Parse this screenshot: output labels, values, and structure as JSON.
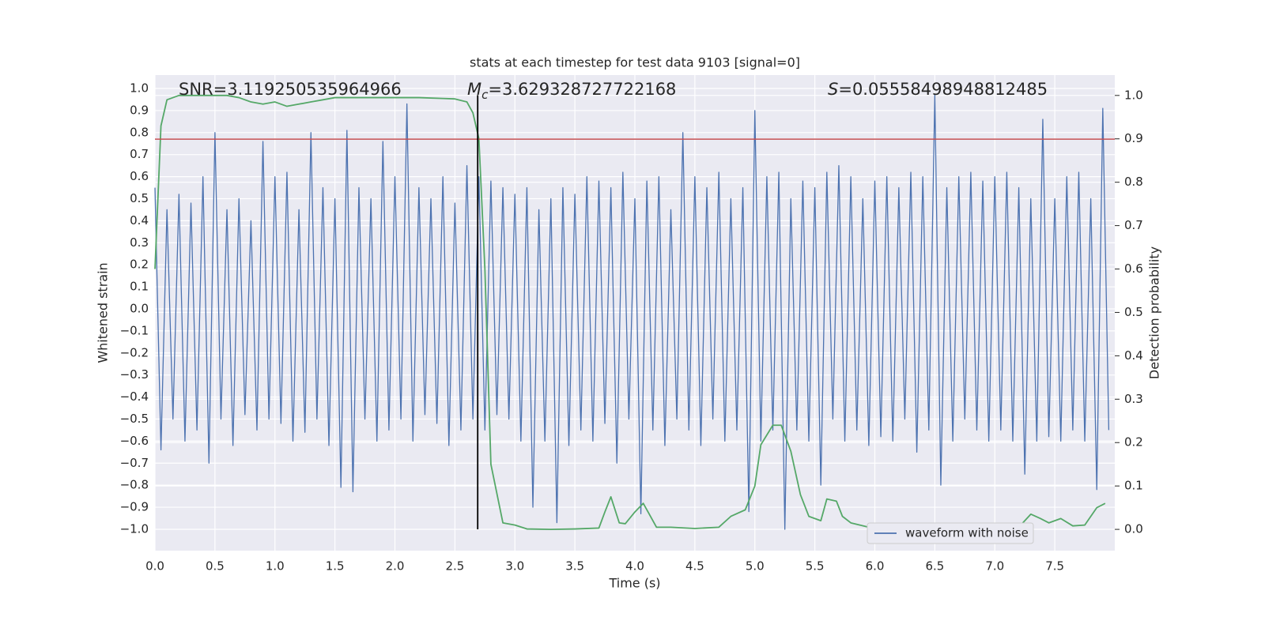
{
  "chart_data": {
    "type": "line",
    "title": "stats at each timestep for test data 9103 [signal=0]",
    "xlabel": "Time (s)",
    "ylabel": "Whitened strain",
    "y2label": "Detection probability",
    "annotations": [
      {
        "text": "SNR=3.119250535964966"
      },
      {
        "symbol": "M",
        "subscript": "c",
        "text": "=3.629328727722168"
      },
      {
        "symbol": "S",
        "text": "=0.05558498948812485"
      }
    ],
    "xlim": [
      0,
      8
    ],
    "ylim": [
      -1.097,
      1.061
    ],
    "y2lim": [
      -0.049,
      1.047
    ],
    "xticks": [
      {
        "value": 0,
        "label": "0.0"
      },
      0.5,
      {
        "value": 1,
        "label": "1.0"
      },
      1.5,
      {
        "value": 2,
        "label": "2.0"
      },
      2.5,
      {
        "value": 3,
        "label": "3.0"
      },
      3.5,
      {
        "value": 4,
        "label": "4.0"
      },
      4.5,
      {
        "value": 5,
        "label": "5.0"
      },
      5.5,
      {
        "value": 6,
        "label": "6.0"
      },
      6.5,
      {
        "value": 7,
        "label": "7.0"
      },
      7.5
    ],
    "yticks": [
      {
        "value": 1,
        "label": "1.0"
      },
      0.9,
      0.8,
      0.7,
      0.6,
      0.5,
      0.4,
      0.3,
      0.2,
      0.1,
      {
        "value": 0,
        "label": "0.0"
      },
      {
        "value": -0.1,
        "label": "−0.1"
      },
      {
        "value": -0.2,
        "label": "−0.2"
      },
      {
        "value": -0.3,
        "label": "−0.3"
      },
      {
        "value": -0.4,
        "label": "−0.4"
      },
      {
        "value": -0.5,
        "label": "−0.5"
      },
      {
        "value": -0.6,
        "label": "−0.6"
      },
      {
        "value": -0.7,
        "label": "−0.7"
      },
      {
        "value": -0.8,
        "label": "−0.8"
      },
      {
        "value": -0.9,
        "label": "−0.9"
      },
      {
        "value": -1,
        "label": "−1.0"
      }
    ],
    "y2ticks": [
      {
        "value": 0,
        "label": "0.0"
      },
      0.1,
      0.2,
      0.3,
      0.4,
      0.5,
      0.6,
      0.7,
      0.8,
      0.9,
      {
        "value": 1,
        "label": "1.0"
      }
    ],
    "grid": true,
    "legend_loc": "lower right",
    "hlines": [
      {
        "y": 0.77,
        "color": "#c44e52"
      }
    ],
    "vlines": [
      {
        "x": 2.69,
        "ymin": -1.0,
        "ymax": 0.97,
        "color": "#000000"
      }
    ],
    "series": [
      {
        "name": "waveform with noise",
        "color": "#4c72b0",
        "x": [
          0,
          0.05,
          0.1,
          0.15,
          0.2,
          0.25,
          0.3,
          0.35,
          0.4,
          0.45,
          0.5,
          0.55,
          0.6,
          0.65,
          0.7,
          0.75,
          0.8,
          0.85,
          0.9,
          0.95,
          1,
          1.05,
          1.1,
          1.15,
          1.2,
          1.25,
          1.3,
          1.35,
          1.4,
          1.45,
          1.5,
          1.55,
          1.6,
          1.65,
          1.7,
          1.75,
          1.8,
          1.85,
          1.9,
          1.95,
          2,
          2.05,
          2.1,
          2.15,
          2.2,
          2.25,
          2.3,
          2.35,
          2.4,
          2.45,
          2.5,
          2.55,
          2.6,
          2.65,
          2.7,
          2.75,
          2.8,
          2.85,
          2.9,
          2.95,
          3,
          3.05,
          3.1,
          3.15,
          3.2,
          3.25,
          3.3,
          3.35,
          3.4,
          3.45,
          3.5,
          3.55,
          3.6,
          3.65,
          3.7,
          3.75,
          3.8,
          3.85,
          3.9,
          3.95,
          4,
          4.05,
          4.1,
          4.15,
          4.2,
          4.25,
          4.3,
          4.35,
          4.4,
          4.45,
          4.5,
          4.55,
          4.6,
          4.65,
          4.7,
          4.75,
          4.8,
          4.85,
          4.9,
          4.95,
          5,
          5.05,
          5.1,
          5.15,
          5.2,
          5.25,
          5.3,
          5.35,
          5.4,
          5.45,
          5.5,
          5.55,
          5.6,
          5.65,
          5.7,
          5.75,
          5.8,
          5.85,
          5.9,
          5.95,
          6,
          6.05,
          6.1,
          6.15,
          6.2,
          6.25,
          6.3,
          6.35,
          6.4,
          6.45,
          6.5,
          6.55,
          6.6,
          6.65,
          6.7,
          6.75,
          6.8,
          6.85,
          6.9,
          6.95,
          7,
          7.05,
          7.1,
          7.15,
          7.2,
          7.25,
          7.3,
          7.35,
          7.4,
          7.45,
          7.5,
          7.55,
          7.6,
          7.65,
          7.7,
          7.75,
          7.8,
          7.85,
          7.9,
          7.95
        ],
        "values": [
          0.55,
          -0.64,
          0.45,
          -0.5,
          0.52,
          -0.6,
          0.48,
          -0.55,
          0.6,
          -0.7,
          0.8,
          -0.5,
          0.45,
          -0.62,
          0.5,
          -0.48,
          0.4,
          -0.55,
          0.76,
          -0.5,
          0.6,
          -0.52,
          0.62,
          -0.6,
          0.45,
          -0.56,
          0.8,
          -0.5,
          0.55,
          -0.62,
          0.5,
          -0.81,
          0.81,
          -0.83,
          0.55,
          -0.5,
          0.5,
          -0.6,
          0.76,
          -0.55,
          0.6,
          -0.5,
          0.93,
          -0.6,
          0.55,
          -0.48,
          0.5,
          -0.52,
          0.6,
          -0.62,
          0.48,
          -0.55,
          0.65,
          -0.5,
          0.6,
          -0.55,
          0.58,
          -0.48,
          0.55,
          -0.5,
          0.52,
          -0.6,
          0.55,
          -0.9,
          0.45,
          -0.6,
          0.5,
          -0.97,
          0.55,
          -0.62,
          0.52,
          -0.55,
          0.6,
          -0.6,
          0.58,
          -0.52,
          0.55,
          -0.7,
          0.62,
          -0.5,
          0.5,
          -0.93,
          0.58,
          -0.55,
          0.6,
          -0.62,
          0.45,
          -0.5,
          0.8,
          -0.55,
          0.6,
          -0.62,
          0.55,
          -0.5,
          0.62,
          -0.6,
          0.5,
          -0.55,
          0.55,
          -0.92,
          0.9,
          -0.6,
          0.6,
          -0.55,
          0.62,
          -1.0,
          0.5,
          -0.55,
          0.58,
          -0.6,
          0.55,
          -0.8,
          0.62,
          -0.5,
          0.65,
          -0.6,
          0.6,
          -0.55,
          0.5,
          -0.62,
          0.58,
          -0.58,
          0.6,
          -0.6,
          0.55,
          -0.5,
          0.62,
          -0.65,
          0.6,
          -0.55,
          0.97,
          -0.8,
          0.55,
          -0.6,
          0.6,
          -0.5,
          0.62,
          -0.55,
          0.58,
          -0.6,
          0.6,
          -0.55,
          0.62,
          -0.6,
          0.55,
          -0.75,
          0.5,
          -0.6,
          0.86,
          -0.58,
          0.5,
          -0.6,
          0.6,
          -0.55,
          0.62,
          -0.6,
          0.5,
          -0.82,
          0.91,
          -0.55
        ]
      },
      {
        "color": "#55a868",
        "axis": "y2",
        "x": [
          0,
          0.05,
          0.1,
          0.2,
          0.3,
          0.4,
          0.5,
          0.6,
          0.7,
          0.8,
          0.9,
          1.0,
          1.1,
          1.2,
          1.3,
          1.4,
          1.5,
          1.6,
          1.8,
          2.0,
          2.2,
          2.4,
          2.5,
          2.6,
          2.65,
          2.7,
          2.75,
          2.8,
          2.9,
          3.0,
          3.1,
          3.3,
          3.5,
          3.7,
          3.75,
          3.8,
          3.87,
          3.92,
          4.0,
          4.07,
          4.12,
          4.18,
          4.3,
          4.5,
          4.7,
          4.8,
          4.92,
          5.0,
          5.05,
          5.15,
          5.22,
          5.3,
          5.38,
          5.45,
          5.55,
          5.6,
          5.68,
          5.73,
          5.8,
          5.95,
          6.1,
          6.3,
          6.5,
          6.7,
          7.0,
          7.2,
          7.3,
          7.38,
          7.45,
          7.55,
          7.65,
          7.75,
          7.85,
          7.92
        ],
        "values": [
          0.6,
          0.93,
          0.99,
          1,
          1,
          1,
          1,
          1,
          0.995,
          0.985,
          0.98,
          0.985,
          0.975,
          0.98,
          0.985,
          0.99,
          0.995,
          0.995,
          0.995,
          0.995,
          0.995,
          0.993,
          0.992,
          0.985,
          0.96,
          0.9,
          0.6,
          0.15,
          0.015,
          0.01,
          0.001,
          0,
          0.001,
          0.003,
          0.04,
          0.075,
          0.015,
          0.013,
          0.04,
          0.06,
          0.035,
          0.005,
          0.005,
          0.002,
          0.005,
          0.03,
          0.045,
          0.1,
          0.195,
          0.24,
          0.24,
          0.18,
          0.08,
          0.03,
          0.02,
          0.07,
          0.065,
          0.03,
          0.015,
          0.005,
          0.001,
          0.001,
          0.001,
          0,
          0.003,
          0.005,
          0.035,
          0.025,
          0.015,
          0.025,
          0.008,
          0.01,
          0.05,
          0.06
        ]
      }
    ]
  }
}
